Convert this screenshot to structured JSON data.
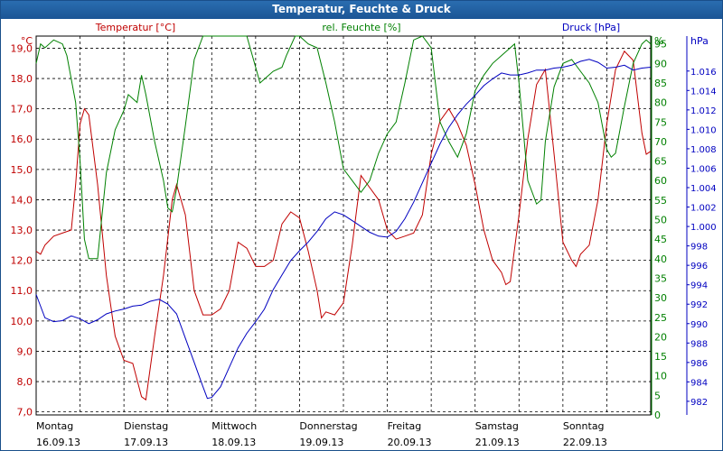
{
  "chart_data": {
    "type": "line",
    "title": "Temperatur, Feuchte & Druck",
    "x_labels": [
      {
        "day": "Montag",
        "date": "16.09.13"
      },
      {
        "day": "Dienstag",
        "date": "17.09.13"
      },
      {
        "day": "Mittwoch",
        "date": "18.09.13"
      },
      {
        "day": "Donnerstag",
        "date": "19.09.13"
      },
      {
        "day": "Freitag",
        "date": "20.09.13"
      },
      {
        "day": "Samstag",
        "date": "21.09.13"
      },
      {
        "day": "Sonntag",
        "date": "22.09.13"
      }
    ],
    "x_range_days": [
      0,
      7
    ],
    "axes": {
      "temperature": {
        "label": "Temperatur [°C]",
        "unit": "°C",
        "ylim": [
          6.9,
          19.4
        ],
        "ticks": [
          "7,0",
          "8,0",
          "9,0",
          "10,0",
          "11,0",
          "12,0",
          "13,0",
          "14,0",
          "15,0",
          "16,0",
          "17,0",
          "18,0",
          "19,0"
        ],
        "tick_values": [
          7,
          8,
          9,
          10,
          11,
          12,
          13,
          14,
          15,
          16,
          17,
          18,
          19
        ]
      },
      "humidity": {
        "label": "rel. Feuchte [%]",
        "unit": "%",
        "ylim": [
          0,
          97
        ],
        "ticks": [
          "0",
          "5",
          "10",
          "15",
          "20",
          "25",
          "30",
          "35",
          "40",
          "45",
          "50",
          "55",
          "60",
          "65",
          "70",
          "75",
          "80",
          "85",
          "90",
          "95"
        ],
        "tick_values": [
          0,
          5,
          10,
          15,
          20,
          25,
          30,
          35,
          40,
          45,
          50,
          55,
          60,
          65,
          70,
          75,
          80,
          85,
          90,
          95
        ]
      },
      "pressure": {
        "label": "Druck [hPa]",
        "unit": "hPa",
        "ylim": [
          980.6,
          1019.6
        ],
        "ticks": [
          "982",
          "984",
          "986",
          "988",
          "990",
          "992",
          "994",
          "996",
          "998",
          "1.000",
          "1.002",
          "1.004",
          "1.006",
          "1.008",
          "1.010",
          "1.012",
          "1.014",
          "1.016"
        ],
        "tick_values": [
          982,
          984,
          986,
          988,
          990,
          992,
          994,
          996,
          998,
          1000,
          1002,
          1004,
          1006,
          1008,
          1010,
          1012,
          1014,
          1016
        ]
      }
    },
    "grid": true,
    "colors": {
      "temperature": "#c00000",
      "humidity": "#008000",
      "pressure": "#0000c0",
      "titlebar": "#1b5595"
    },
    "series": [
      {
        "name": "Temperatur [°C]",
        "axis": "temperature",
        "points": [
          [
            0,
            12.3
          ],
          [
            0.05,
            12.2
          ],
          [
            0.1,
            12.5
          ],
          [
            0.2,
            12.8
          ],
          [
            0.3,
            12.9
          ],
          [
            0.4,
            13.0
          ],
          [
            0.45,
            14.5
          ],
          [
            0.5,
            16.5
          ],
          [
            0.55,
            17.0
          ],
          [
            0.6,
            16.8
          ],
          [
            0.7,
            14.5
          ],
          [
            0.8,
            11.5
          ],
          [
            0.9,
            9.5
          ],
          [
            1.0,
            8.7
          ],
          [
            1.1,
            8.6
          ],
          [
            1.2,
            7.5
          ],
          [
            1.25,
            7.4
          ],
          [
            1.35,
            9.5
          ],
          [
            1.45,
            11.5
          ],
          [
            1.55,
            14.0
          ],
          [
            1.6,
            14.5
          ],
          [
            1.7,
            13.5
          ],
          [
            1.8,
            11.0
          ],
          [
            1.9,
            10.2
          ],
          [
            2.0,
            10.2
          ],
          [
            2.1,
            10.4
          ],
          [
            2.2,
            11.0
          ],
          [
            2.3,
            12.6
          ],
          [
            2.4,
            12.4
          ],
          [
            2.5,
            11.8
          ],
          [
            2.6,
            11.8
          ],
          [
            2.7,
            12.0
          ],
          [
            2.8,
            13.2
          ],
          [
            2.9,
            13.6
          ],
          [
            3.0,
            13.4
          ],
          [
            3.1,
            12.3
          ],
          [
            3.2,
            11.0
          ],
          [
            3.25,
            10.1
          ],
          [
            3.3,
            10.3
          ],
          [
            3.4,
            10.2
          ],
          [
            3.5,
            10.6
          ],
          [
            3.6,
            12.5
          ],
          [
            3.7,
            14.8
          ],
          [
            3.8,
            14.4
          ],
          [
            3.9,
            14.0
          ],
          [
            4.0,
            13.0
          ],
          [
            4.1,
            12.7
          ],
          [
            4.2,
            12.8
          ],
          [
            4.3,
            12.9
          ],
          [
            4.4,
            13.5
          ],
          [
            4.5,
            15.5
          ],
          [
            4.6,
            16.6
          ],
          [
            4.7,
            17.0
          ],
          [
            4.8,
            16.5
          ],
          [
            4.9,
            15.8
          ],
          [
            5.0,
            14.5
          ],
          [
            5.1,
            13.0
          ],
          [
            5.2,
            12.0
          ],
          [
            5.3,
            11.6
          ],
          [
            5.35,
            11.2
          ],
          [
            5.4,
            11.3
          ],
          [
            5.5,
            13.5
          ],
          [
            5.6,
            16.0
          ],
          [
            5.7,
            17.8
          ],
          [
            5.8,
            18.3
          ],
          [
            5.9,
            15.5
          ],
          [
            6.0,
            12.6
          ],
          [
            6.1,
            12.0
          ],
          [
            6.15,
            11.8
          ],
          [
            6.2,
            12.2
          ],
          [
            6.3,
            12.5
          ],
          [
            6.4,
            14.0
          ],
          [
            6.5,
            16.5
          ],
          [
            6.6,
            18.3
          ],
          [
            6.7,
            18.9
          ],
          [
            6.8,
            18.6
          ],
          [
            6.9,
            16.2
          ],
          [
            6.95,
            15.5
          ],
          [
            7.0,
            15.6
          ]
        ]
      },
      {
        "name": "rel. Feuchte [%]",
        "axis": "humidity",
        "points": [
          [
            0,
            90
          ],
          [
            0.05,
            95
          ],
          [
            0.1,
            94
          ],
          [
            0.2,
            96
          ],
          [
            0.3,
            95
          ],
          [
            0.35,
            92
          ],
          [
            0.45,
            80
          ],
          [
            0.5,
            65
          ],
          [
            0.55,
            45
          ],
          [
            0.6,
            40
          ],
          [
            0.7,
            40
          ],
          [
            0.8,
            62
          ],
          [
            0.9,
            73
          ],
          [
            1.0,
            78
          ],
          [
            1.05,
            82
          ],
          [
            1.15,
            80
          ],
          [
            1.2,
            87
          ],
          [
            1.25,
            82
          ],
          [
            1.35,
            70
          ],
          [
            1.45,
            60
          ],
          [
            1.5,
            53
          ],
          [
            1.55,
            52
          ],
          [
            1.6,
            58
          ],
          [
            1.7,
            74
          ],
          [
            1.8,
            91
          ],
          [
            1.9,
            97
          ],
          [
            2.0,
            97
          ],
          [
            2.1,
            97
          ],
          [
            2.2,
            97
          ],
          [
            2.3,
            97
          ],
          [
            2.4,
            97
          ],
          [
            2.5,
            89
          ],
          [
            2.55,
            85
          ],
          [
            2.6,
            86
          ],
          [
            2.7,
            88
          ],
          [
            2.8,
            89
          ],
          [
            2.85,
            92
          ],
          [
            2.95,
            97
          ],
          [
            3.0,
            97
          ],
          [
            3.1,
            95
          ],
          [
            3.2,
            94
          ],
          [
            3.3,
            85
          ],
          [
            3.4,
            75
          ],
          [
            3.5,
            63
          ],
          [
            3.6,
            60
          ],
          [
            3.7,
            57
          ],
          [
            3.8,
            60
          ],
          [
            3.9,
            67
          ],
          [
            4.0,
            72
          ],
          [
            4.1,
            75
          ],
          [
            4.2,
            85
          ],
          [
            4.3,
            96
          ],
          [
            4.4,
            97
          ],
          [
            4.5,
            94
          ],
          [
            4.6,
            75
          ],
          [
            4.7,
            70
          ],
          [
            4.8,
            66
          ],
          [
            4.9,
            72
          ],
          [
            5.0,
            83
          ],
          [
            5.1,
            87
          ],
          [
            5.2,
            90
          ],
          [
            5.3,
            92
          ],
          [
            5.4,
            94
          ],
          [
            5.45,
            95
          ],
          [
            5.5,
            85
          ],
          [
            5.6,
            60
          ],
          [
            5.7,
            54
          ],
          [
            5.75,
            55
          ],
          [
            5.8,
            70
          ],
          [
            5.9,
            84
          ],
          [
            6.0,
            90
          ],
          [
            6.1,
            91
          ],
          [
            6.2,
            88
          ],
          [
            6.3,
            85
          ],
          [
            6.4,
            80
          ],
          [
            6.5,
            68
          ],
          [
            6.55,
            66
          ],
          [
            6.6,
            67
          ],
          [
            6.7,
            79
          ],
          [
            6.8,
            90
          ],
          [
            6.9,
            95
          ],
          [
            6.95,
            96
          ],
          [
            7.0,
            95
          ]
        ]
      },
      {
        "name": "Druck [hPa]",
        "axis": "pressure",
        "points": [
          [
            0,
            993.0
          ],
          [
            0.1,
            990.6
          ],
          [
            0.2,
            990.2
          ],
          [
            0.3,
            990.3
          ],
          [
            0.4,
            990.8
          ],
          [
            0.5,
            990.5
          ],
          [
            0.6,
            990.0
          ],
          [
            0.7,
            990.4
          ],
          [
            0.8,
            991.0
          ],
          [
            0.9,
            991.3
          ],
          [
            1.0,
            991.5
          ],
          [
            1.1,
            991.8
          ],
          [
            1.2,
            991.9
          ],
          [
            1.3,
            992.3
          ],
          [
            1.4,
            992.5
          ],
          [
            1.5,
            992.0
          ],
          [
            1.6,
            991.0
          ],
          [
            1.7,
            988.5
          ],
          [
            1.8,
            986.0
          ],
          [
            1.9,
            983.5
          ],
          [
            1.95,
            982.3
          ],
          [
            2.0,
            982.4
          ],
          [
            2.1,
            983.5
          ],
          [
            2.2,
            985.5
          ],
          [
            2.3,
            987.5
          ],
          [
            2.4,
            989.0
          ],
          [
            2.5,
            990.2
          ],
          [
            2.6,
            991.5
          ],
          [
            2.7,
            993.5
          ],
          [
            2.8,
            995.0
          ],
          [
            2.9,
            996.5
          ],
          [
            3.0,
            997.5
          ],
          [
            3.1,
            998.4
          ],
          [
            3.2,
            999.5
          ],
          [
            3.3,
            1000.8
          ],
          [
            3.4,
            1001.5
          ],
          [
            3.5,
            1001.2
          ],
          [
            3.6,
            1000.6
          ],
          [
            3.7,
            1000.0
          ],
          [
            3.8,
            999.4
          ],
          [
            3.9,
            999.0
          ],
          [
            4.0,
            998.9
          ],
          [
            4.1,
            999.5
          ],
          [
            4.2,
            1000.8
          ],
          [
            4.3,
            1002.5
          ],
          [
            4.4,
            1004.5
          ],
          [
            4.5,
            1006.5
          ],
          [
            4.6,
            1008.5
          ],
          [
            4.7,
            1010.2
          ],
          [
            4.8,
            1011.5
          ],
          [
            4.9,
            1012.6
          ],
          [
            5.0,
            1013.5
          ],
          [
            5.1,
            1014.5
          ],
          [
            5.2,
            1015.2
          ],
          [
            5.3,
            1015.8
          ],
          [
            5.4,
            1015.6
          ],
          [
            5.5,
            1015.6
          ],
          [
            5.6,
            1015.8
          ],
          [
            5.7,
            1016.1
          ],
          [
            5.8,
            1016.1
          ],
          [
            5.9,
            1016.3
          ],
          [
            6.0,
            1016.4
          ],
          [
            6.1,
            1016.6
          ],
          [
            6.2,
            1017.0
          ],
          [
            6.3,
            1017.2
          ],
          [
            6.4,
            1016.9
          ],
          [
            6.5,
            1016.3
          ],
          [
            6.6,
            1016.4
          ],
          [
            6.7,
            1016.6
          ],
          [
            6.8,
            1016.1
          ],
          [
            6.9,
            1016.3
          ],
          [
            7.0,
            1016.4
          ]
        ]
      }
    ]
  }
}
